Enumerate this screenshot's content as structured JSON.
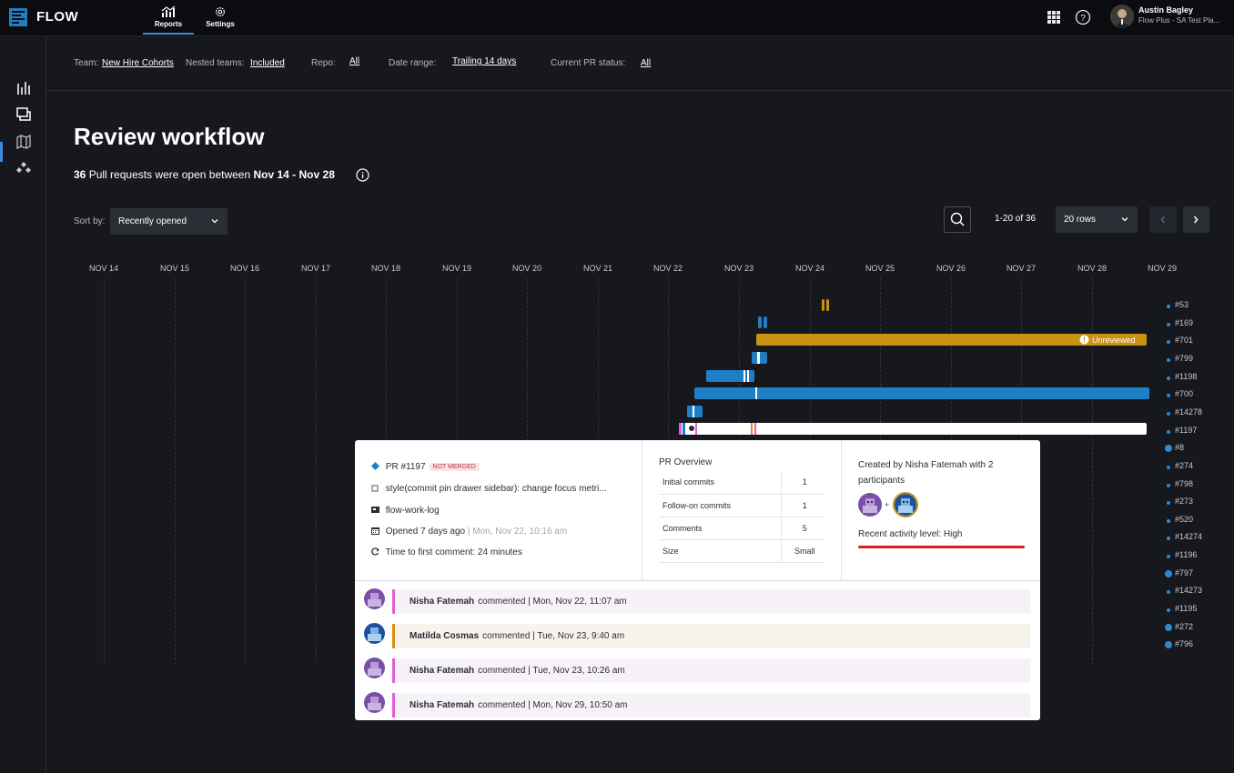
{
  "app": {
    "brand": "FLOW"
  },
  "nav": {
    "tabs": [
      {
        "label": "Reports"
      },
      {
        "label": "Settings"
      }
    ]
  },
  "user": {
    "name": "Austin Bagley",
    "org": "Flow Plus - SA Test Pla..."
  },
  "filters": {
    "team_label": "Team:",
    "team_value": "New Hire Cohorts",
    "nested_label": "Nested teams:",
    "nested_value": "Included",
    "repo_label": "Repo:",
    "repo_value": "All",
    "date_label": "Date range:",
    "date_value": "Trailing 14 days",
    "status_label": "Current PR status:",
    "status_value": "All"
  },
  "page": {
    "title": "Review workflow",
    "count": "36",
    "subtitle_mid": "Pull requests were open between",
    "date_span": "Nov 14 - Nov 28"
  },
  "controls": {
    "sort_label": "Sort by:",
    "sort_value": "Recently opened",
    "page_count": "1-20 of 36",
    "rows_value": "20 rows"
  },
  "timeline": {
    "dates": [
      "NOV 14",
      "NOV 15",
      "NOV 16",
      "NOV 17",
      "NOV 18",
      "NOV 19",
      "NOV 20",
      "NOV 21",
      "NOV 22",
      "NOV 23",
      "NOV 24",
      "NOV 25",
      "NOV 26",
      "NOV 27",
      "NOV 28",
      "NOV 29"
    ],
    "prs": [
      "#53",
      "#169",
      "#701",
      "#799",
      "#1198",
      "#700",
      "#14278",
      "#1197",
      "#8",
      "#274",
      "#798",
      "#273",
      "#520",
      "#14274",
      "#1196",
      "#797",
      "#14273",
      "#1195",
      "#272",
      "#796"
    ],
    "big_dots": [
      "#8",
      "#797",
      "#272",
      "#796"
    ],
    "unreviewed_label": "Unreviewed",
    "colors": {
      "blue": "#1f7fc6",
      "gold": "#c99212",
      "pink": "#e35bd6"
    }
  },
  "popover": {
    "pr_number": "PR #1197",
    "status_badge": "NOT MERGED",
    "commit_title": "style(commit pin drawer sidebar): change focus metri...",
    "repo": "flow-work-log",
    "opened": "Opened 7 days ago",
    "opened_date": "Mon, Nov 22, 10:16 am",
    "first_comment": "Time to first comment: 24 minutes",
    "overview_title": "PR Overview",
    "overview_rows": [
      {
        "label": "Initial commits",
        "value": "1"
      },
      {
        "label": "Follow-on commits",
        "value": "1"
      },
      {
        "label": "Comments",
        "value": "5"
      },
      {
        "label": "Size",
        "value": "Small"
      }
    ],
    "created_by": "Created by Nisha Fatemah with 2 participants",
    "activity": "Recent activity level: High",
    "comments": [
      {
        "author": "Nisha Fatemah",
        "action": "commented",
        "date": "| Mon, Nov 22, 11:07 am",
        "color": "#e35bd6"
      },
      {
        "author": "Matilda Cosmas",
        "action": "commented",
        "date": "| Tue, Nov 23, 9:40 am",
        "color": "#d8900f"
      },
      {
        "author": "Nisha Fatemah",
        "action": "commented",
        "date": "| Tue, Nov 23, 10:26 am",
        "color": "#e35bd6"
      },
      {
        "author": "Nisha Fatemah",
        "action": "commented",
        "date": "| Mon, Nov 29, 10:50 am",
        "color": "#e35bd6"
      }
    ]
  }
}
